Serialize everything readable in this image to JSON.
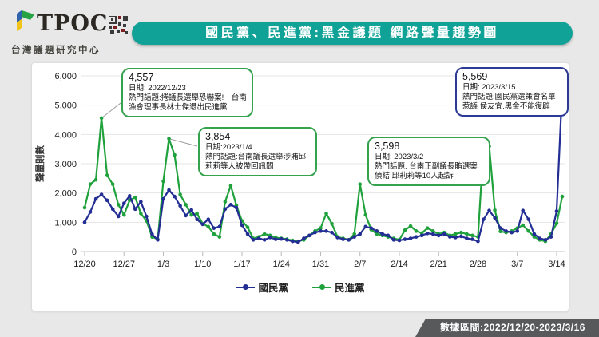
{
  "header": {
    "logo": {
      "text": "TPOC",
      "subtitle": "台灣議題研究中心"
    },
    "title": "國民黨、民進黨:黑金議題  網路聲量趨勢圖"
  },
  "footer": {
    "label": "數據區間:2022/12/20-2023/3/16"
  },
  "colors": {
    "banner_teal": "#10a296",
    "footer_gray": "#58595b",
    "kmt_blue": "#232e94",
    "dpp_green": "#1fa13c"
  },
  "chart_data": {
    "type": "line",
    "title": "國民黨、民進黨:黑金議題 網路聲量趨勢圖",
    "ylabel": "聲量則數",
    "ylim": [
      0,
      6000
    ],
    "ytick_labels": [
      "0",
      "1,000",
      "2,000",
      "3,000",
      "4,000",
      "5,000",
      "6,000"
    ],
    "grid": "horizontal",
    "legend_position": "bottom",
    "x_start": "2022/12/20",
    "x_end": "2023/3/15",
    "x_unit": "day",
    "x_tick_labels": [
      "12/20",
      "12/27",
      "1/3",
      "1/10",
      "1/17",
      "1/24",
      "1/31",
      "2/7",
      "2/14",
      "2/21",
      "2/28",
      "3/7",
      "3/14"
    ],
    "x_tick_indices": [
      0,
      7,
      14,
      21,
      28,
      35,
      42,
      49,
      56,
      63,
      70,
      77,
      84
    ],
    "series": [
      {
        "name": "國民黨",
        "color": "#232e94",
        "values": [
          1000,
          1350,
          1800,
          1950,
          1750,
          1450,
          1200,
          1650,
          1900,
          1450,
          1700,
          1200,
          590,
          400,
          1800,
          2100,
          1880,
          1560,
          1230,
          1420,
          1100,
          930,
          1100,
          800,
          850,
          1450,
          1600,
          1500,
          900,
          600,
          400,
          450,
          400,
          480,
          420,
          430,
          400,
          350,
          320,
          450,
          550,
          650,
          700,
          700,
          650,
          480,
          420,
          400,
          500,
          600,
          850,
          800,
          700,
          600,
          550,
          400,
          380,
          420,
          450,
          500,
          550,
          620,
          600,
          550,
          600,
          500,
          480,
          520,
          450,
          420,
          350,
          1100,
          1400,
          1150,
          800,
          700,
          650,
          700,
          1400,
          1100,
          600,
          450,
          400,
          500,
          1380,
          5569
        ]
      },
      {
        "name": "民進黨",
        "color": "#1fa13c",
        "values": [
          1500,
          2300,
          2450,
          4557,
          2600,
          2300,
          1600,
          1250,
          1750,
          1850,
          1300,
          1050,
          500,
          420,
          2400,
          3854,
          3300,
          1950,
          1600,
          1250,
          1300,
          950,
          850,
          600,
          500,
          1700,
          2250,
          1580,
          1050,
          830,
          450,
          500,
          600,
          550,
          480,
          450,
          420,
          380,
          350,
          400,
          550,
          700,
          800,
          1300,
          950,
          500,
          450,
          400,
          600,
          2300,
          1250,
          750,
          600,
          550,
          500,
          450,
          400,
          730,
          870,
          700,
          630,
          800,
          700,
          600,
          650,
          550,
          600,
          650,
          600,
          550,
          500,
          3610,
          3598,
          1410,
          690,
          650,
          700,
          800,
          900,
          700,
          500,
          400,
          350,
          600,
          960,
          1880
        ]
      }
    ],
    "annotations": [
      {
        "value": "4,557",
        "date_line": "日期: 2022/12/23",
        "topic": "熱門話題:捲議長選舉恐嚇案!　台南漁會理事長林士傑退出民進黨",
        "series": 1,
        "index": 3,
        "color": "#35a24e"
      },
      {
        "value": "3,854",
        "date_line": "日期:2023/1/4",
        "topic": "熱門話題:台南議長選舉涉賄邱莉莉等人被帶回訊問",
        "series": 1,
        "index": 15,
        "color": "#35a24e"
      },
      {
        "value": "3,598",
        "date_line": "日期: 2023/3/2",
        "topic": "熱門話題: 台南正副議長賄選案偵結 邱莉莉等10人起訴",
        "series": 1,
        "index": 72,
        "color": "#35a24e"
      },
      {
        "value": "5,569",
        "date_line": "日期: 2023/3/15",
        "topic": "熱門話題:國民黨選策會名單惹議 侯友宜:黑金不能復辟",
        "series": 0,
        "index": 85,
        "color": "#2c3a96"
      }
    ]
  }
}
